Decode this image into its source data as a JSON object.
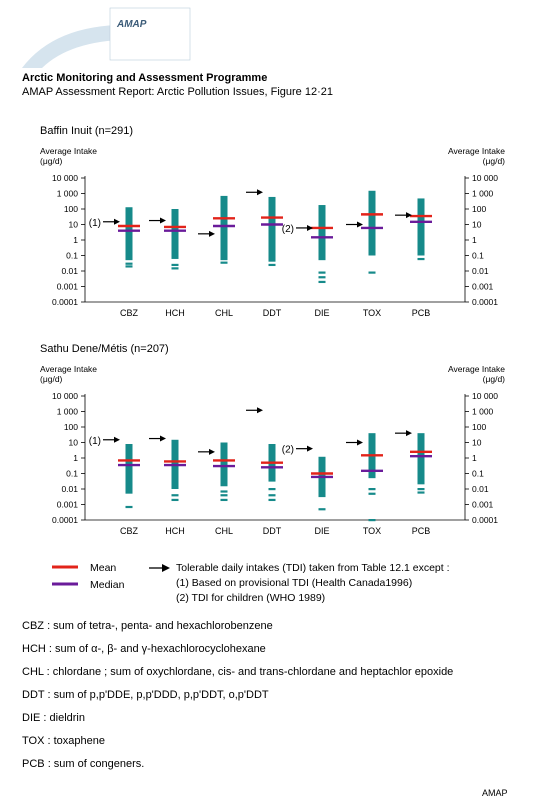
{
  "header": {
    "logo_text": "AMAP",
    "title": "Arctic Monitoring and Assessment Programme",
    "subtitle": "AMAP Assessment Report: Arctic Pollution Issues, Figure 12·21"
  },
  "colors": {
    "bar": "#168A8A",
    "mean": "#E2231A",
    "median": "#6A1B9A",
    "arrow": "#000000"
  },
  "chart_data": [
    {
      "type": "range-bar",
      "title": "Baffin Inuit (n=291)",
      "ylabel_left": "Average Intake",
      "ylabel_unit": "(μg/d)",
      "ylabel_right": "Average Intake",
      "yscale": "log",
      "ylim": [
        0.0001,
        10000
      ],
      "yticks": [
        "10 000",
        "1 000",
        "100",
        "10",
        "1",
        "0.1",
        "0.01",
        "0.001",
        "0.0001"
      ],
      "categories": [
        "CBZ",
        "HCH",
        "CHL",
        "DDT",
        "DIE",
        "TOX",
        "PCB"
      ],
      "ranges": [
        [
          0.05,
          130
        ],
        [
          0.06,
          100
        ],
        [
          0.05,
          700
        ],
        [
          0.04,
          600
        ],
        [
          0.05,
          180
        ],
        [
          0.1,
          1500
        ],
        [
          0.1,
          480
        ]
      ],
      "outliers": [
        [
          0.02,
          0.03
        ],
        [
          0.015,
          0.025
        ],
        [
          0.035
        ],
        [
          0.025
        ],
        [
          0.002,
          0.004,
          0.008
        ],
        [
          0.008
        ],
        [
          0.06
        ]
      ],
      "mean": [
        8,
        7,
        25,
        28,
        6,
        45,
        35
      ],
      "median": [
        4,
        4,
        8,
        10,
        1.5,
        6,
        15
      ],
      "tdi": [
        15,
        18,
        2.5,
        1200,
        6,
        10,
        40
      ],
      "tdi_notes": [
        "(1)",
        "",
        "",
        "",
        "(2)",
        "",
        ""
      ]
    },
    {
      "type": "range-bar",
      "title": "Sathu Dene/Métis (n=207)",
      "ylabel_left": "Average Intake",
      "ylabel_unit": "(μg/d)",
      "ylabel_right": "Average Intake",
      "yscale": "log",
      "ylim": [
        0.0001,
        10000
      ],
      "yticks": [
        "10 000",
        "1 000",
        "100",
        "10",
        "1",
        "0.1",
        "0.01",
        "0.001",
        "0.0001"
      ],
      "categories": [
        "CBZ",
        "HCH",
        "CHL",
        "DDT",
        "DIE",
        "TOX",
        "PCB"
      ],
      "ranges": [
        [
          0.005,
          8
        ],
        [
          0.01,
          15
        ],
        [
          0.015,
          10
        ],
        [
          0.03,
          8
        ],
        [
          0.003,
          1.2
        ],
        [
          0.05,
          40
        ],
        [
          0.02,
          40
        ]
      ],
      "outliers": [
        [
          0.0007
        ],
        [
          0.004,
          0.002
        ],
        [
          0.007,
          0.004,
          0.002
        ],
        [
          0.01,
          0.004,
          0.002
        ],
        [
          0.0005
        ],
        [
          0.01,
          0.005,
          0.0001
        ],
        [
          0.006,
          0.01
        ]
      ],
      "mean": [
        0.7,
        0.6,
        0.7,
        0.5,
        0.1,
        1.5,
        2.5
      ],
      "median": [
        0.35,
        0.35,
        0.3,
        0.25,
        0.06,
        0.15,
        1.3
      ],
      "tdi": [
        15,
        18,
        2.5,
        1200,
        4,
        10,
        40
      ],
      "tdi_notes": [
        "(1)",
        "",
        "",
        "",
        "(2)",
        "",
        ""
      ]
    }
  ],
  "legend": {
    "mean": "Mean",
    "median": "Median",
    "tdi_line1": "Tolerable daily intakes (TDI) taken from Table 12.1 except :",
    "tdi_line2": "(1) Based on provisional TDI (Health Canada1996)",
    "tdi_line3": "(2) TDI for children (WHO 1989)"
  },
  "definitions": [
    {
      "abbr": "CBZ",
      "text": ": sum of tetra-, penta- and hexachlorobenzene"
    },
    {
      "abbr": "HCH",
      "text": ": sum of α-, β- and γ-hexachlorocyclohexane"
    },
    {
      "abbr": "CHL",
      "text": ": chlordane ; sum of oxychlordane, cis- and trans-chlordane and heptachlor epoxide"
    },
    {
      "abbr": "DDT",
      "text": ": sum of p,p'DDE,  p,p'DDD, p,p'DDT, o,p'DDT"
    },
    {
      "abbr": "DIE",
      "text": " : dieldrin"
    },
    {
      "abbr": "TOX",
      "text": ": toxaphene"
    },
    {
      "abbr": "PCB",
      "text": ": sum of congeners."
    }
  ],
  "footer": "AMAP"
}
